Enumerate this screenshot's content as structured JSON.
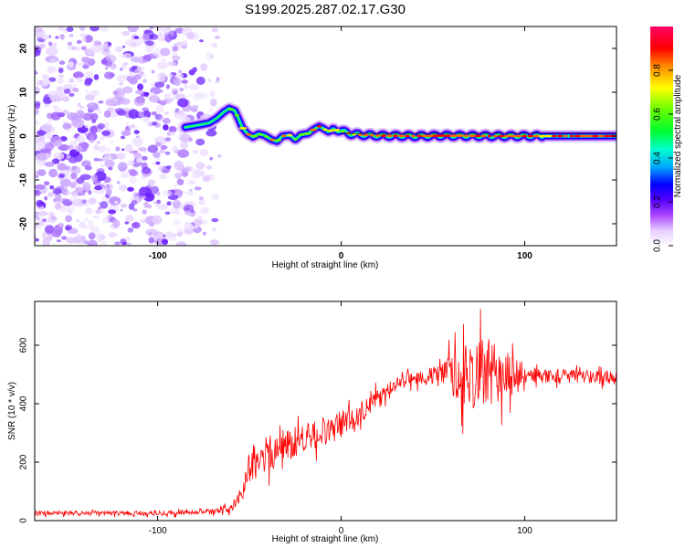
{
  "title": "S199.2025.287.02.17.G30",
  "chart_data": [
    {
      "type": "heatmap",
      "xlabel": "Height of straight line (km)",
      "ylabel": "Frequency (Hz)",
      "xlim": [
        -167,
        150
      ],
      "ylim": [
        -25,
        25
      ],
      "xticks": [
        -100,
        0,
        100
      ],
      "yticks": [
        -20,
        -10,
        0,
        10,
        20
      ],
      "colorbar": {
        "label": "Normalized spectral amplitude",
        "ticks": [
          "0.0",
          "0.2",
          "0.4",
          "0.6",
          "0.8"
        ],
        "range": [
          0,
          1
        ],
        "colors": [
          "#ffffff",
          "#cc66ff",
          "#6a00ff",
          "#0000ff",
          "#00ccff",
          "#00ff66",
          "#33ff00",
          "#ffff00",
          "#ff6600",
          "#ff0000",
          "#ff0066"
        ]
      },
      "noise_region_x": [
        -167,
        -65
      ],
      "ridge": {
        "x": [
          -85,
          -78,
          -72,
          -68,
          -64,
          -61,
          -58,
          -56,
          -54,
          -51,
          -48,
          -45,
          -42,
          -38,
          -35,
          -32,
          -28,
          -25,
          -22,
          -18,
          -15,
          -12,
          -10,
          -7,
          -4,
          0,
          5,
          10,
          20,
          40,
          60,
          80,
          100,
          120,
          150
        ],
        "freq": [
          2,
          2.5,
          3,
          4,
          5.5,
          6.3,
          5.8,
          4,
          2,
          0.5,
          -0.2,
          0.5,
          0.2,
          -0.8,
          -1.2,
          0,
          0.2,
          -0.8,
          0.3,
          0.6,
          1.5,
          2.2,
          1.8,
          1,
          1.5,
          1.2,
          0.5,
          0.3,
          0.1,
          0,
          0.1,
          0,
          0,
          0,
          0
        ]
      }
    },
    {
      "type": "line",
      "xlabel": "Height of straight line (km)",
      "ylabel": "SNR (10 * v/v)",
      "xlim": [
        -167,
        150
      ],
      "ylim": [
        0,
        750
      ],
      "xticks": [
        -100,
        0,
        100
      ],
      "yticks": [
        0,
        200,
        400,
        600
      ],
      "color": "#ff0000",
      "envelope": {
        "x": [
          -167,
          -100,
          -70,
          -60,
          -55,
          -50,
          -40,
          -30,
          -20,
          -10,
          0,
          10,
          20,
          30,
          40,
          50,
          60,
          70,
          80,
          90,
          100,
          110,
          120,
          130,
          140,
          150
        ],
        "mean": [
          25,
          25,
          30,
          40,
          80,
          180,
          230,
          260,
          280,
          300,
          330,
          370,
          420,
          470,
          490,
          495,
          500,
          500,
          500,
          500,
          500,
          495,
          495,
          495,
          492,
          490
        ],
        "spread": [
          10,
          10,
          12,
          15,
          40,
          70,
          80,
          70,
          70,
          60,
          60,
          50,
          35,
          30,
          30,
          40,
          90,
          150,
          150,
          100,
          40,
          30,
          30,
          30,
          30,
          30
        ]
      }
    }
  ]
}
